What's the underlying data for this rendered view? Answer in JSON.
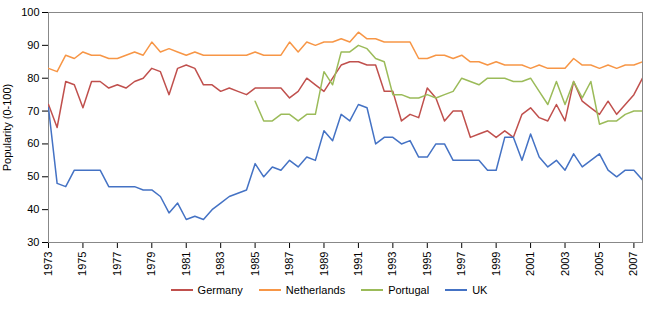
{
  "chart_data": {
    "type": "line",
    "ylabel": "Popularity (0-100)",
    "x": [
      1973.0,
      1973.5,
      1974.0,
      1974.5,
      1975.0,
      1975.5,
      1976.0,
      1976.5,
      1977.0,
      1977.5,
      1978.0,
      1978.5,
      1979.0,
      1979.5,
      1980.0,
      1980.5,
      1981.0,
      1981.5,
      1982.0,
      1982.5,
      1983.0,
      1983.5,
      1984.0,
      1984.5,
      1985.0,
      1985.5,
      1986.0,
      1986.5,
      1987.0,
      1987.5,
      1988.0,
      1988.5,
      1989.0,
      1989.5,
      1990.0,
      1990.5,
      1991.0,
      1991.5,
      1992.0,
      1992.5,
      1993.0,
      1993.5,
      1994.0,
      1994.5,
      1995.0,
      1995.5,
      1996.0,
      1996.5,
      1997.0,
      1997.5,
      1998.0,
      1998.5,
      1999.0,
      1999.5,
      2000.0,
      2000.5,
      2001.0,
      2001.5,
      2002.0,
      2002.5,
      2003.0,
      2003.5,
      2004.0,
      2004.5,
      2005.0,
      2005.5,
      2006.0,
      2006.5,
      2007.0,
      2007.5
    ],
    "series": [
      {
        "name": "Germany",
        "color": "#c0504d",
        "values": [
          72,
          65,
          79,
          78,
          71,
          79,
          79,
          77,
          78,
          77,
          79,
          80,
          83,
          82,
          75,
          83,
          84,
          83,
          78,
          78,
          76,
          77,
          76,
          75,
          77,
          77,
          77,
          77,
          74,
          76,
          80,
          78,
          76,
          80,
          84,
          85,
          85,
          84,
          84,
          76,
          76,
          67,
          69,
          68,
          77,
          74,
          67,
          70,
          70,
          62,
          63,
          64,
          62,
          64,
          62,
          69,
          71,
          68,
          67,
          72,
          67,
          79,
          73,
          71,
          69,
          73,
          69,
          72,
          75,
          80
        ]
      },
      {
        "name": "Netherlands",
        "color": "#f79646",
        "values": [
          83,
          82,
          87,
          86,
          88,
          87,
          87,
          86,
          86,
          87,
          88,
          87,
          91,
          88,
          89,
          88,
          87,
          88,
          87,
          87,
          87,
          87,
          87,
          87,
          88,
          87,
          87,
          87,
          91,
          88,
          91,
          90,
          91,
          91,
          92,
          91,
          94,
          92,
          92,
          91,
          91,
          91,
          91,
          86,
          86,
          87,
          87,
          86,
          87,
          85,
          85,
          84,
          85,
          84,
          84,
          84,
          83,
          84,
          83,
          83,
          83,
          86,
          84,
          84,
          83,
          84,
          83,
          84,
          84,
          85
        ]
      },
      {
        "name": "Portugal",
        "color": "#9bbb59",
        "values": [
          null,
          null,
          null,
          null,
          null,
          null,
          null,
          null,
          null,
          null,
          null,
          null,
          null,
          null,
          null,
          null,
          null,
          null,
          null,
          null,
          null,
          null,
          null,
          null,
          73,
          67,
          67,
          69,
          69,
          67,
          69,
          69,
          82,
          78,
          88,
          88,
          90,
          89,
          86,
          85,
          75,
          75,
          74,
          74,
          75,
          74,
          75,
          76,
          80,
          79,
          78,
          80,
          80,
          80,
          79,
          79,
          80,
          76,
          72,
          79,
          72,
          79,
          74,
          79,
          66,
          67,
          67,
          69,
          70,
          70
        ]
      },
      {
        "name": "UK",
        "color": "#4472c4",
        "values": [
          71,
          48,
          47,
          52,
          52,
          52,
          52,
          47,
          47,
          47,
          47,
          46,
          46,
          44,
          39,
          42,
          37,
          38,
          37,
          40,
          42,
          44,
          45,
          46,
          54,
          50,
          53,
          52,
          55,
          53,
          56,
          55,
          64,
          61,
          69,
          67,
          72,
          71,
          60,
          62,
          62,
          60,
          61,
          56,
          56,
          60,
          60,
          55,
          55,
          55,
          55,
          52,
          52,
          62,
          62,
          55,
          63,
          56,
          53,
          55,
          52,
          57,
          53,
          55,
          57,
          52,
          50,
          52,
          52,
          49
        ]
      }
    ],
    "xlim": [
      1973.0,
      2007.5
    ],
    "xticks": [
      1973,
      1975,
      1977,
      1979,
      1981,
      1983,
      1985,
      1987,
      1989,
      1991,
      1993,
      1995,
      1997,
      1999,
      2001,
      2003,
      2005,
      2007
    ],
    "ylim": [
      30,
      100
    ],
    "yticks": [
      30,
      40,
      50,
      60,
      70,
      80,
      90,
      100
    ],
    "grid": false,
    "legend": "bottom"
  }
}
